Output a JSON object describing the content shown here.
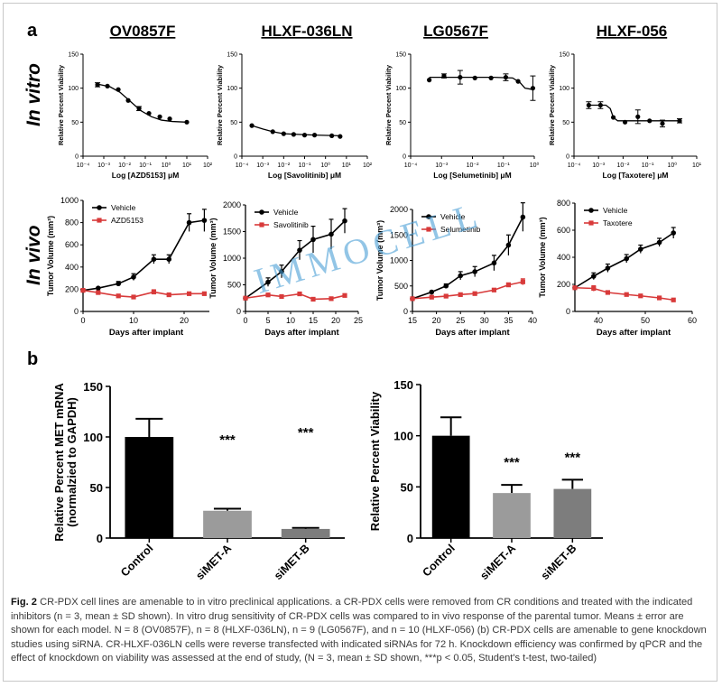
{
  "panel_a_label": "a",
  "panel_b_label": "b",
  "row_label_vitro": "In vitro",
  "row_label_vivo": "In vivo",
  "models": [
    "OV0857F",
    "HLXF-036LN",
    "LG0567F",
    "HLXF-056"
  ],
  "watermark": "IMMOCELL",
  "caption": {
    "fig_label": "Fig. 2",
    "text": " CR-PDX cell lines are amenable to in vitro preclinical applications. a CR-PDX cells were removed from CR conditions and treated with the indicated inhibitors (n = 3, mean ± SD shown). In vitro drug sensitivity of CR-PDX cells was compared to in vivo response of the parental tumor. Means ± error are shown for each model. N = 8 (OV0857F), n = 8 (HLXF-036LN), n = 9 (LG0567F), and n = 10 (HLXF-056) (b) CR-PDX cells are amenable to gene knockdown studies using siRNA. CR-HLXF-036LN cells were reverse transfected with indicated siRNAs for 72 h. Knockdown efficiency was confirmed by qPCR and the effect of knockdown on viability was assessed at the end of study, (N = 3, mean ± SD shown, ***p < 0.05, Student's t-test, two-tailed)"
  },
  "chart_data": [
    {
      "id": "vitro-1",
      "type": "scatter",
      "scale": "log-x",
      "ylabel": "Relative Percent Viability",
      "xlabel": "Log [AZD5153] μM",
      "xlim": [
        0.0001,
        100
      ],
      "ylim": [
        0,
        150
      ],
      "xticks": [
        "10⁻⁴",
        "10⁻³",
        "10⁻²",
        "10⁻¹",
        "10⁰",
        "10¹",
        "10²"
      ],
      "yticks": [
        "0",
        "50",
        "100",
        "150"
      ],
      "points": [
        [
          0.0005,
          105,
          3
        ],
        [
          0.0015,
          103,
          0
        ],
        [
          0.005,
          98,
          0
        ],
        [
          0.015,
          82,
          0
        ],
        [
          0.05,
          70,
          3
        ],
        [
          0.15,
          63,
          0
        ],
        [
          0.5,
          58,
          0
        ],
        [
          1.5,
          55,
          0
        ],
        [
          10,
          50,
          0
        ]
      ],
      "curve": [
        [
          0.0005,
          106
        ],
        [
          0.002,
          102
        ],
        [
          0.006,
          94
        ],
        [
          0.02,
          80
        ],
        [
          0.06,
          67
        ],
        [
          0.2,
          58
        ],
        [
          0.6,
          53
        ],
        [
          2,
          51
        ],
        [
          10,
          50
        ]
      ]
    },
    {
      "id": "vitro-2",
      "type": "scatter",
      "scale": "log-x",
      "ylabel": "Relative Percent Viability",
      "xlabel": "Log [Savolitinib] μM",
      "xlim": [
        0.0001,
        100
      ],
      "ylim": [
        0,
        150
      ],
      "xticks": [
        "10⁻⁴",
        "10⁻³",
        "10⁻²",
        "10⁻¹",
        "10⁰",
        "10¹",
        "10²"
      ],
      "yticks": [
        "0",
        "50",
        "100",
        "150"
      ],
      "points": [
        [
          0.0003,
          45,
          0
        ],
        [
          0.003,
          36,
          0
        ],
        [
          0.01,
          33,
          0
        ],
        [
          0.03,
          32,
          0
        ],
        [
          0.1,
          31,
          0
        ],
        [
          0.3,
          31,
          0
        ],
        [
          2,
          30,
          0
        ],
        [
          5,
          29,
          0
        ]
      ],
      "curve": [
        [
          0.0003,
          45
        ],
        [
          0.001,
          40
        ],
        [
          0.003,
          36
        ],
        [
          0.01,
          33
        ],
        [
          0.05,
          32
        ],
        [
          0.3,
          31
        ],
        [
          5,
          30
        ]
      ]
    },
    {
      "id": "vitro-3",
      "type": "scatter",
      "scale": "log-x",
      "ylabel": "Relative Percent Viability",
      "xlabel": "Log [Selumetinib] μM",
      "xlim": [
        0.0001,
        1
      ],
      "ylim": [
        0,
        150
      ],
      "xticks": [
        "10⁻⁴",
        "10⁻³",
        "10⁻²",
        "10⁻¹",
        "10⁰"
      ],
      "yticks": [
        "0",
        "50",
        "100",
        "150"
      ],
      "points": [
        [
          0.0004,
          112,
          0
        ],
        [
          0.0012,
          118,
          3
        ],
        [
          0.004,
          116,
          10
        ],
        [
          0.012,
          115,
          0
        ],
        [
          0.04,
          115,
          0
        ],
        [
          0.12,
          116,
          5
        ],
        [
          0.3,
          110,
          0
        ],
        [
          0.9,
          100,
          18
        ]
      ],
      "curve": [
        [
          0.0004,
          116
        ],
        [
          0.004,
          116
        ],
        [
          0.05,
          116
        ],
        [
          0.2,
          115
        ],
        [
          0.35,
          108
        ],
        [
          0.5,
          100
        ],
        [
          0.9,
          98
        ]
      ]
    },
    {
      "id": "vitro-4",
      "type": "scatter",
      "scale": "log-x",
      "ylabel": "Relative Percent Viability",
      "xlabel": "Log [Taxotere] μM",
      "xlim": [
        0.0001,
        10
      ],
      "ylim": [
        0,
        150
      ],
      "xticks": [
        "10⁻⁴",
        "10⁻³",
        "10⁻²",
        "10⁻¹",
        "10⁰",
        "10¹"
      ],
      "yticks": [
        "0",
        "50",
        "100",
        "150"
      ],
      "points": [
        [
          0.0004,
          75,
          5
        ],
        [
          0.0012,
          75,
          5
        ],
        [
          0.004,
          57,
          0
        ],
        [
          0.012,
          50,
          0
        ],
        [
          0.04,
          58,
          10
        ],
        [
          0.12,
          52,
          0
        ],
        [
          0.4,
          48,
          5
        ],
        [
          2,
          52,
          3
        ]
      ],
      "curve": [
        [
          0.0004,
          75
        ],
        [
          0.002,
          75
        ],
        [
          0.003,
          70
        ],
        [
          0.004,
          57
        ],
        [
          0.006,
          52
        ],
        [
          0.05,
          52
        ],
        [
          2,
          52
        ]
      ]
    },
    {
      "id": "vivo-1",
      "type": "line",
      "ylabel": "Tumor Volume (mm³)",
      "xlabel": "Days after implant",
      "xlim": [
        0,
        25
      ],
      "ylim": [
        0,
        1000
      ],
      "xticks": [
        "0",
        "10",
        "20"
      ],
      "xtick_values": [
        0,
        10,
        20
      ],
      "yticks": [
        "0",
        "200",
        "400",
        "600",
        "800",
        "1000"
      ],
      "legend": [
        "Vehicle",
        "AZD5153"
      ],
      "series": [
        {
          "name": "Vehicle",
          "color": "#000000",
          "x": [
            0,
            3,
            7,
            10,
            14,
            17,
            21,
            24
          ],
          "y": [
            190,
            210,
            250,
            310,
            470,
            470,
            800,
            820
          ],
          "err": [
            0,
            0,
            20,
            30,
            40,
            40,
            80,
            100
          ]
        },
        {
          "name": "AZD5153",
          "color": "#d83a3a",
          "x": [
            0,
            3,
            7,
            10,
            14,
            17,
            21,
            24
          ],
          "y": [
            190,
            170,
            140,
            130,
            175,
            150,
            160,
            160
          ],
          "err": [
            0,
            0,
            0,
            0,
            20,
            0,
            0,
            0
          ]
        }
      ]
    },
    {
      "id": "vivo-2",
      "type": "line",
      "ylabel": "Tumor Volume (mm³)",
      "xlabel": "Days after implant",
      "xlim": [
        0,
        25
      ],
      "ylim": [
        0,
        2000
      ],
      "xticks": [
        "0",
        "5",
        "10",
        "15",
        "20",
        "25"
      ],
      "xtick_values": [
        0,
        5,
        10,
        15,
        20,
        25
      ],
      "yticks": [
        "0",
        "500",
        "1000",
        "1500",
        "2000"
      ],
      "legend": [
        "Vehicle",
        "Savolitinib"
      ],
      "series": [
        {
          "name": "Vehicle",
          "color": "#000000",
          "x": [
            0,
            5,
            8,
            12,
            15,
            19,
            22
          ],
          "y": [
            250,
            550,
            750,
            1150,
            1350,
            1450,
            1700
          ],
          "err": [
            0,
            80,
            120,
            180,
            250,
            280,
            230
          ]
        },
        {
          "name": "Savolitinib",
          "color": "#d83a3a",
          "x": [
            0,
            5,
            8,
            12,
            15,
            19,
            22
          ],
          "y": [
            250,
            310,
            280,
            330,
            230,
            240,
            300
          ],
          "err": [
            0,
            30,
            0,
            30,
            0,
            0,
            30
          ]
        }
      ]
    },
    {
      "id": "vivo-3",
      "type": "line",
      "ylabel": "Tumor Volume (mm³)",
      "xlabel": "Days after implant",
      "xlim": [
        15,
        40
      ],
      "ylim": [
        0,
        2000
      ],
      "xticks": [
        "15",
        "20",
        "25",
        "30",
        "35",
        "40"
      ],
      "xtick_values": [
        15,
        20,
        25,
        30,
        35,
        40
      ],
      "yticks": [
        "0",
        "500",
        "1000",
        "1500",
        "2000"
      ],
      "legend": [
        "Vehicle",
        "Selumetinib"
      ],
      "series": [
        {
          "name": "Vehicle",
          "color": "#000000",
          "x": [
            15,
            19,
            22,
            25,
            28,
            32,
            35,
            38
          ],
          "y": [
            250,
            380,
            500,
            700,
            780,
            950,
            1300,
            1850
          ],
          "err": [
            0,
            0,
            40,
            80,
            100,
            150,
            200,
            280
          ]
        },
        {
          "name": "Selumetinib",
          "color": "#d83a3a",
          "x": [
            15,
            19,
            22,
            25,
            28,
            32,
            35,
            38
          ],
          "y": [
            250,
            280,
            300,
            330,
            350,
            420,
            520,
            580
          ],
          "err": [
            0,
            0,
            0,
            0,
            0,
            30,
            40,
            60
          ]
        }
      ]
    },
    {
      "id": "vivo-4",
      "type": "line",
      "ylabel": "Tumor Volume (mm³)",
      "xlabel": "Days after implant",
      "xlim": [
        35,
        60
      ],
      "ylim": [
        0,
        800
      ],
      "xticks": [
        "40",
        "50",
        "60"
      ],
      "xtick_values": [
        40,
        50,
        60
      ],
      "yticks": [
        "0",
        "200",
        "400",
        "600",
        "800"
      ],
      "legend": [
        "Vehicle",
        "Taxotere"
      ],
      "series": [
        {
          "name": "Vehicle",
          "color": "#000000",
          "x": [
            35,
            39,
            42,
            46,
            49,
            53,
            56
          ],
          "y": [
            175,
            260,
            320,
            390,
            460,
            510,
            580
          ],
          "err": [
            0,
            25,
            30,
            30,
            30,
            30,
            40
          ]
        },
        {
          "name": "Taxotere",
          "color": "#d83a3a",
          "x": [
            35,
            39,
            42,
            46,
            49,
            53,
            56
          ],
          "y": [
            175,
            170,
            140,
            125,
            115,
            100,
            85
          ],
          "err": [
            0,
            20,
            0,
            0,
            0,
            0,
            0
          ]
        }
      ]
    },
    {
      "id": "bar-1",
      "type": "bar",
      "ylabel": "Relative Percent MET mRNA",
      "ylabel2": "(normalzied to GAPDH)",
      "ylim": [
        0,
        150
      ],
      "yticks": [
        "0",
        "50",
        "100",
        "150"
      ],
      "categories": [
        "Control",
        "siMET-A",
        "siMET-B"
      ],
      "values": [
        100,
        27,
        9
      ],
      "errors": [
        18,
        2,
        1
      ],
      "colors": [
        "#000000",
        "#9b9b9b",
        "#7d7d7d"
      ],
      "annotations": [
        "",
        "***",
        "***"
      ]
    },
    {
      "id": "bar-2",
      "type": "bar",
      "ylabel": "Relative Percent Viability",
      "ylim": [
        0,
        150
      ],
      "yticks": [
        "0",
        "50",
        "100",
        "150"
      ],
      "categories": [
        "Control",
        "siMET-A",
        "siMET-B"
      ],
      "values": [
        100,
        44,
        48
      ],
      "errors": [
        18,
        8,
        9
      ],
      "colors": [
        "#000000",
        "#9b9b9b",
        "#7d7d7d"
      ],
      "annotations": [
        "",
        "***",
        "***"
      ]
    }
  ]
}
